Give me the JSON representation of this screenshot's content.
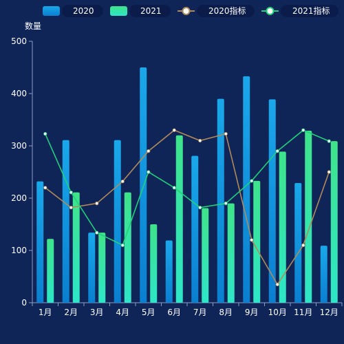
{
  "colors": {
    "background": "#0f2457",
    "legend_pill": "#0b1c4a",
    "axis": "#8fa0c7",
    "bar2020_top": "#1aa8ea",
    "bar2020_bottom": "#0a7fd0",
    "bar2021_top": "#3fe38a",
    "bar2021_bottom": "#2ee6c8",
    "line2020": "#b18a5a",
    "line2021": "#1fd17a",
    "point_fill": "#ffffff"
  },
  "chart_data": {
    "type": "bar",
    "ylabel": "数量",
    "ylim": [
      0,
      500
    ],
    "yticks": [
      0,
      100,
      200,
      300,
      400,
      500
    ],
    "categories": [
      "1月",
      "2月",
      "3月",
      "4月",
      "5月",
      "6月",
      "7月",
      "8月",
      "9月",
      "10月",
      "11月",
      "12月"
    ],
    "legend_position": "top-right",
    "grid": false,
    "series": [
      {
        "name": "2020",
        "kind": "bar",
        "values": [
          232,
          311,
          134,
          311,
          450,
          119,
          281,
          390,
          433,
          389,
          229,
          109
        ]
      },
      {
        "name": "2021",
        "kind": "bar",
        "values": [
          122,
          211,
          134,
          211,
          150,
          320,
          181,
          190,
          233,
          289,
          329,
          309
        ]
      },
      {
        "name": "2020指标",
        "kind": "line",
        "values": [
          220,
          182,
          190,
          232,
          290,
          330,
          310,
          323,
          120,
          35,
          110,
          250
        ]
      },
      {
        "name": "2021指标",
        "kind": "line",
        "values": [
          323,
          211,
          134,
          110,
          250,
          220,
          182,
          190,
          233,
          290,
          330,
          309
        ]
      }
    ]
  }
}
